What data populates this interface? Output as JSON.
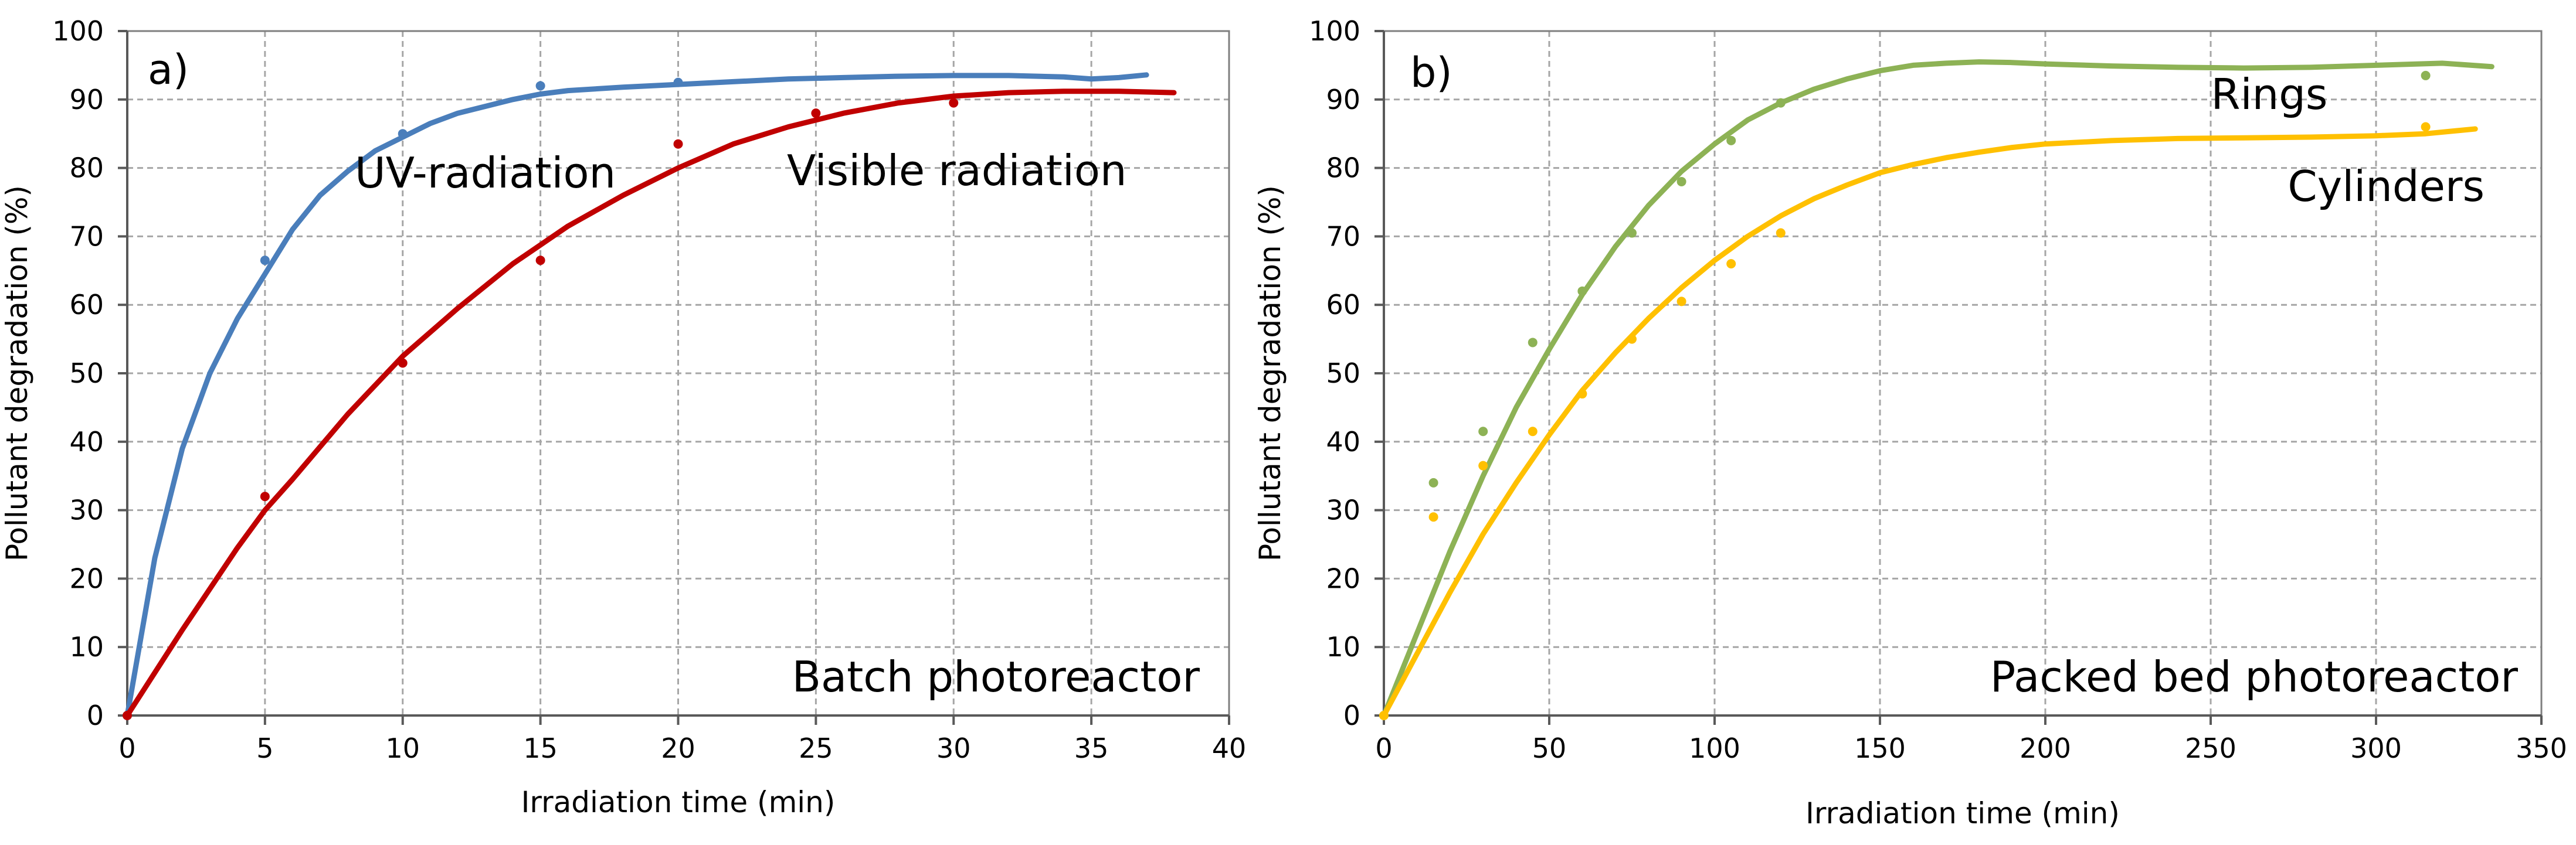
{
  "figure": {
    "description_source": "two-panel photodegradation chart"
  },
  "chart_data": [
    {
      "type": "scatter",
      "panel_label": "a)",
      "xlabel": "Irradiation time (min)",
      "ylabel": "Pollutant degradation (%)",
      "xlim": [
        0,
        40
      ],
      "ylim": [
        0,
        100
      ],
      "xticks": [
        0,
        5,
        10,
        15,
        20,
        25,
        30,
        35,
        40
      ],
      "yticks": [
        0,
        10,
        20,
        30,
        40,
        50,
        60,
        70,
        80,
        90,
        100
      ],
      "grid": true,
      "corner_annotation": "Batch photoreactor",
      "series": [
        {
          "name": "UV-radiation",
          "color": "#4a7ebb",
          "points": {
            "x": [
              0,
              5,
              10,
              15,
              20
            ],
            "y": [
              0,
              66.5,
              85,
              92,
              92.5
            ]
          },
          "curve": {
            "x": [
              0,
              1,
              2,
              3,
              4,
              5,
              6,
              7,
              8,
              9,
              10,
              11,
              12,
              13,
              14,
              15,
              16,
              18,
              20,
              22,
              24,
              26,
              28,
              30,
              32,
              34,
              35,
              36,
              37
            ],
            "y": [
              0,
              23,
              39,
              50,
              58,
              64.5,
              71,
              76,
              79.5,
              82.5,
              84.5,
              86.5,
              88,
              89,
              90,
              90.8,
              91.3,
              91.8,
              92.2,
              92.6,
              93,
              93.2,
              93.4,
              93.5,
              93.5,
              93.3,
              93,
              93.2,
              93.6
            ]
          }
        },
        {
          "name": "Visible radiation",
          "color": "#c00000",
          "points": {
            "x": [
              0,
              5,
              10,
              15,
              20,
              25,
              30
            ],
            "y": [
              0,
              32,
              51.5,
              66.5,
              83.5,
              88,
              89.5
            ]
          },
          "curve": {
            "x": [
              0,
              2,
              4,
              5,
              6,
              8,
              10,
              12,
              14,
              16,
              18,
              20,
              22,
              24,
              26,
              28,
              30,
              32,
              34,
              36,
              38
            ],
            "y": [
              0,
              12.5,
              24.5,
              30,
              34.5,
              44,
              52.5,
              59.5,
              66,
              71.5,
              76,
              80,
              83.5,
              86,
              88,
              89.5,
              90.5,
              91,
              91.2,
              91.2,
              91
            ]
          }
        }
      ],
      "series_labels": [
        {
          "text": "UV-radiation",
          "series": "UV-radiation"
        },
        {
          "text": "Visible radiation",
          "series": "Visible radiation"
        }
      ]
    },
    {
      "type": "scatter",
      "panel_label": "b)",
      "xlabel": "Irradiation time (min)",
      "ylabel": "Pollutant degradation (%)",
      "xlim": [
        0,
        350
      ],
      "ylim": [
        0,
        100
      ],
      "xticks": [
        0,
        50,
        100,
        150,
        200,
        250,
        300,
        350
      ],
      "yticks": [
        0,
        10,
        20,
        30,
        40,
        50,
        60,
        70,
        80,
        90,
        100
      ],
      "grid": true,
      "corner_annotation": "Packed bed photoreactor",
      "series": [
        {
          "name": "Rings",
          "color": "#8db255",
          "points": {
            "x": [
              0,
              15,
              30,
              45,
              60,
              75,
              90,
              105,
              120,
              315
            ],
            "y": [
              0,
              34,
              41.5,
              54.5,
              62,
              70.5,
              78,
              84,
              89.5,
              93.5
            ]
          },
          "curve": {
            "x": [
              0,
              10,
              20,
              30,
              40,
              50,
              60,
              70,
              80,
              90,
              100,
              110,
              120,
              130,
              140,
              150,
              160,
              170,
              180,
              190,
              200,
              220,
              240,
              260,
              280,
              300,
              320,
              335
            ],
            "y": [
              0,
              12,
              24,
              35,
              45,
              53.5,
              61.5,
              68.5,
              74.5,
              79.5,
              83.5,
              87,
              89.5,
              91.5,
              93,
              94.2,
              95,
              95.3,
              95.5,
              95.4,
              95.2,
              94.9,
              94.7,
              94.6,
              94.7,
              95,
              95.3,
              94.8
            ]
          }
        },
        {
          "name": "Cylinders",
          "color": "#ffc000",
          "points": {
            "x": [
              0,
              15,
              30,
              45,
              60,
              75,
              90,
              105,
              120,
              315
            ],
            "y": [
              0,
              29,
              36.5,
              41.5,
              47,
              55,
              60.5,
              66,
              70.5,
              86
            ]
          },
          "curve": {
            "x": [
              0,
              10,
              20,
              30,
              40,
              50,
              60,
              70,
              80,
              90,
              100,
              110,
              120,
              130,
              140,
              150,
              160,
              170,
              180,
              190,
              200,
              220,
              240,
              260,
              280,
              300,
              315,
              330
            ],
            "y": [
              0,
              9,
              18,
              26.5,
              34,
              41,
              47.5,
              53,
              58,
              62.5,
              66.5,
              70,
              73,
              75.5,
              77.5,
              79.3,
              80.5,
              81.5,
              82.3,
              83,
              83.5,
              84,
              84.3,
              84.4,
              84.5,
              84.7,
              85,
              85.7
            ]
          }
        }
      ],
      "series_labels": [
        {
          "text": "Rings",
          "series": "Rings"
        },
        {
          "text": "Cylinders",
          "series": "Cylinders"
        }
      ]
    }
  ]
}
